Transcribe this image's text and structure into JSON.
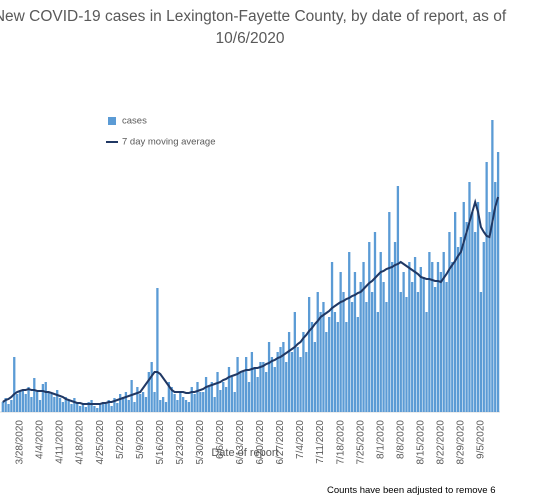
{
  "chart_data": {
    "type": "bar",
    "title": "New COVID-19 cases in Lexington-Fayette County, by date of report, as of 10/6/2020",
    "x_label": "Date of report",
    "footnote": "Counts have been adjusted to remove 6",
    "ylim": [
      0,
      320
    ],
    "legend": "upper-left",
    "categories": [
      null,
      null,
      null,
      null,
      null,
      null,
      "3/28/2020",
      null,
      null,
      null,
      null,
      null,
      null,
      "4/4/2020",
      null,
      null,
      null,
      null,
      null,
      null,
      "4/11/2020",
      null,
      null,
      null,
      null,
      null,
      null,
      "4/18/2020",
      null,
      null,
      null,
      null,
      null,
      null,
      "4/25/2020",
      null,
      null,
      null,
      null,
      null,
      null,
      "5/2/2020",
      null,
      null,
      null,
      null,
      null,
      null,
      "5/9/2020",
      null,
      null,
      null,
      null,
      null,
      null,
      "5/16/2020",
      null,
      null,
      null,
      null,
      null,
      null,
      "5/23/2020",
      null,
      null,
      null,
      null,
      null,
      null,
      "5/30/2020",
      null,
      null,
      null,
      null,
      null,
      null,
      "6/6/2020",
      null,
      null,
      null,
      null,
      null,
      null,
      "6/13/2020",
      null,
      null,
      null,
      null,
      null,
      null,
      "6/20/2020",
      null,
      null,
      null,
      null,
      null,
      null,
      "6/27/2020",
      null,
      null,
      null,
      null,
      null,
      null,
      "7/4/2020",
      null,
      null,
      null,
      null,
      null,
      null,
      "7/11/2020",
      null,
      null,
      null,
      null,
      null,
      null,
      "7/18/2020",
      null,
      null,
      null,
      null,
      null,
      null,
      "7/25/2020",
      null,
      null,
      null,
      null,
      null,
      null,
      "8/1/2020",
      null,
      null,
      null,
      null,
      null,
      null,
      "8/8/2020",
      null,
      null,
      null,
      null,
      null,
      null,
      "8/15/2020",
      null,
      null,
      null,
      null,
      null,
      null,
      "8/22/2020",
      null,
      null,
      null,
      null,
      null,
      null,
      "8/29/2020",
      null,
      null,
      null,
      null,
      null,
      null,
      "9/5/2020",
      null,
      null,
      null,
      null,
      null,
      null
    ],
    "series": [
      {
        "name": "cases",
        "type": "bar",
        "color": "#5b9bd5",
        "values": [
          10,
          14,
          8,
          12,
          55,
          18,
          20,
          22,
          18,
          25,
          15,
          34,
          20,
          12,
          28,
          30,
          20,
          18,
          15,
          22,
          14,
          10,
          15,
          12,
          8,
          14,
          10,
          6,
          8,
          5,
          10,
          12,
          6,
          4,
          7,
          10,
          8,
          12,
          6,
          14,
          9,
          18,
          15,
          20,
          12,
          32,
          10,
          25,
          18,
          20,
          15,
          40,
          50,
          20,
          124,
          12,
          15,
          10,
          30,
          25,
          18,
          12,
          20,
          15,
          12,
          10,
          25,
          18,
          30,
          20,
          20,
          35,
          25,
          30,
          15,
          40,
          22,
          30,
          25,
          45,
          35,
          20,
          55,
          40,
          40,
          55,
          30,
          60,
          45,
          35,
          50,
          50,
          40,
          70,
          55,
          45,
          60,
          65,
          70,
          50,
          80,
          60,
          100,
          65,
          55,
          80,
          60,
          115,
          90,
          70,
          120,
          100,
          110,
          80,
          95,
          150,
          100,
          90,
          140,
          120,
          90,
          160,
          110,
          140,
          95,
          130,
          150,
          110,
          170,
          120,
          180,
          100,
          160,
          130,
          110,
          200,
          150,
          170,
          226,
          120,
          140,
          115,
          150,
          130,
          155,
          120,
          145,
          135,
          100,
          160,
          150,
          125,
          150,
          140,
          160,
          130,
          180,
          150,
          200,
          165,
          175,
          210,
          190,
          230,
          200,
          180,
          210,
          120,
          170,
          250,
          200,
          292,
          230,
          260
        ]
      },
      {
        "name": "7 day moving average",
        "type": "line",
        "color": "#203864",
        "values": [
          10,
          12,
          13,
          15,
          18,
          20,
          21,
          22,
          22,
          23,
          22,
          22,
          21,
          21,
          21,
          20,
          20,
          19,
          18,
          17,
          16,
          15,
          13,
          12,
          11,
          10,
          9,
          9,
          8,
          8,
          8,
          8,
          8,
          8,
          8,
          9,
          9,
          10,
          10,
          11,
          12,
          13,
          14,
          15,
          16,
          17,
          18,
          19,
          20,
          24,
          28,
          32,
          36,
          40,
          40,
          38,
          34,
          30,
          26,
          22,
          20,
          20,
          20,
          20,
          19,
          19,
          20,
          20,
          21,
          22,
          23,
          25,
          26,
          27,
          28,
          29,
          30,
          32,
          33,
          35,
          36,
          37,
          38,
          40,
          41,
          42,
          42,
          43,
          44,
          44,
          45,
          46,
          48,
          49,
          51,
          52,
          54,
          55,
          57,
          59,
          61,
          63,
          65,
          68,
          70,
          74,
          77,
          81,
          84,
          88,
          91,
          95,
          97,
          99,
          101,
          104,
          106,
          108,
          110,
          111,
          113,
          114,
          116,
          117,
          119,
          120,
          123,
          126,
          129,
          131,
          134,
          137,
          140,
          141,
          143,
          144,
          145,
          147,
          148,
          150,
          148,
          146,
          144,
          142,
          140,
          138,
          135,
          134,
          133,
          133,
          132,
          131,
          131,
          130,
          134,
          138,
          143,
          147,
          151,
          156,
          160,
          170,
          180,
          190,
          200,
          210,
          200,
          185,
          180,
          176,
          175,
          190,
          205,
          215
        ]
      }
    ]
  }
}
